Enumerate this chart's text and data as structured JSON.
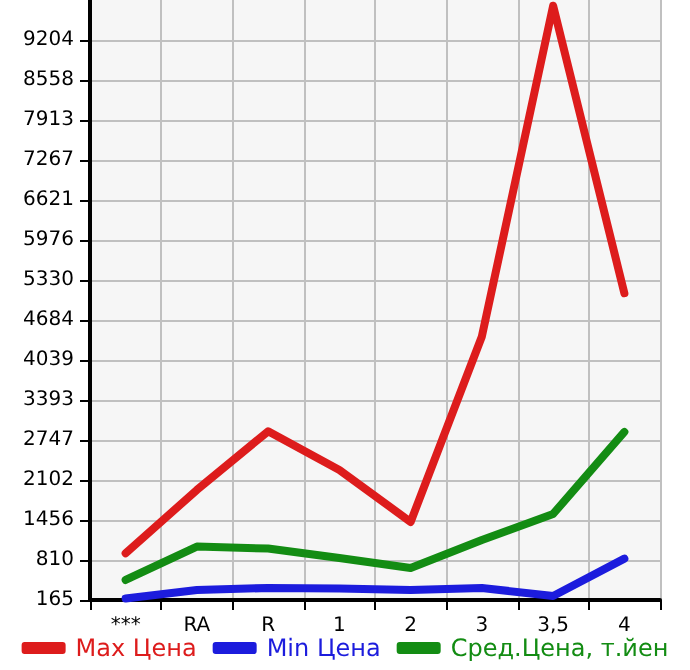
{
  "chart_data": {
    "type": "line",
    "categories": [
      "***",
      "RA",
      "R",
      "1",
      "2",
      "3",
      "3,5",
      "4"
    ],
    "series": [
      {
        "name": "Max Цена",
        "color": "#dd1c1c",
        "values": [
          918,
          1942,
          2888,
          2265,
          1425,
          4419,
          9757,
          5117
        ]
      },
      {
        "name": "Min Цена",
        "color": "#1c1cdd",
        "values": [
          188,
          327,
          359,
          350,
          327,
          359,
          230,
          833
        ]
      },
      {
        "name": "Сред.Цена, т.йен",
        "color": "#138c13",
        "values": [
          488,
          1027,
          995,
          843,
          682,
          1134,
          1554,
          2878
        ]
      }
    ],
    "ylim": [
      165,
      9850
    ],
    "yticks": [
      165,
      810,
      1456,
      2102,
      2747,
      3393,
      4039,
      4684,
      5330,
      5976,
      6621,
      7267,
      7913,
      8558,
      9204
    ],
    "grid": true,
    "legend": "bottom",
    "marker": "none",
    "line_style": "solid"
  }
}
